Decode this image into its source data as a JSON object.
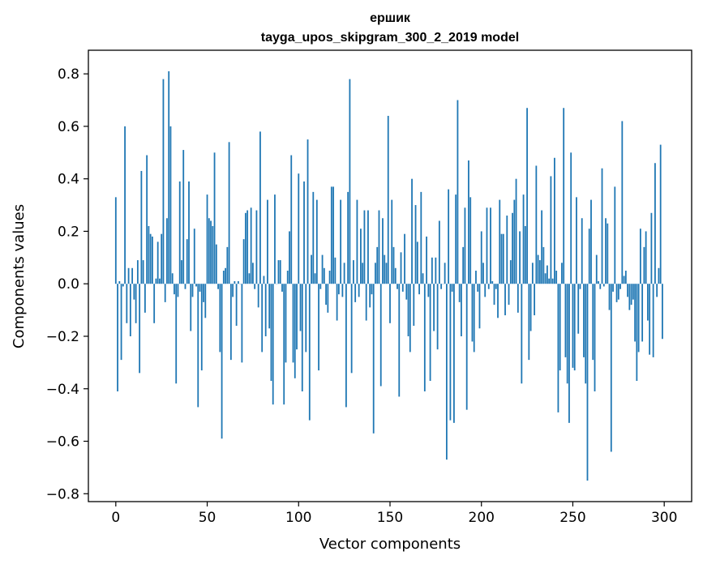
{
  "chart_data": {
    "type": "bar",
    "title_line1": "ершик",
    "title_line2": "tayga_upos_skipgram_300_2_2019 model",
    "xlabel": "Vector components",
    "ylabel": "Components values",
    "xlim": [
      -15,
      315
    ],
    "ylim": [
      -0.83,
      0.89
    ],
    "x_ticks": [
      0,
      50,
      100,
      150,
      200,
      250,
      300
    ],
    "x_tick_labels": [
      "0",
      "50",
      "100",
      "150",
      "200",
      "250",
      "300"
    ],
    "y_ticks": [
      -0.8,
      -0.6,
      -0.4,
      -0.2,
      0.0,
      0.2,
      0.4,
      0.6,
      0.8
    ],
    "y_tick_labels": [
      "−0.8",
      "−0.6",
      "−0.4",
      "−0.2",
      "0.0",
      "0.2",
      "0.4",
      "0.6",
      "0.8"
    ],
    "bar_color": "#1f77b4",
    "values": [
      0.33,
      -0.41,
      0.01,
      -0.29,
      -0.01,
      0.6,
      -0.15,
      0.06,
      -0.2,
      0.06,
      -0.06,
      -0.15,
      0.09,
      -0.34,
      0.43,
      0.09,
      -0.11,
      0.49,
      0.22,
      0.19,
      0.18,
      -0.15,
      0.02,
      0.16,
      0.02,
      0.19,
      0.78,
      -0.07,
      0.25,
      0.81,
      0.6,
      0.04,
      -0.04,
      -0.38,
      -0.05,
      0.39,
      0.09,
      0.51,
      -0.02,
      0.17,
      0.39,
      -0.18,
      -0.05,
      0.21,
      -0.01,
      -0.47,
      -0.03,
      -0.33,
      -0.07,
      -0.13,
      0.34,
      0.25,
      0.24,
      0.22,
      0.5,
      0.15,
      -0.02,
      -0.26,
      -0.59,
      0.05,
      0.06,
      0.14,
      0.54,
      -0.29,
      -0.05,
      0.01,
      -0.16,
      0.01,
      0.0,
      -0.3,
      0.17,
      0.27,
      0.28,
      0.04,
      0.29,
      0.08,
      -0.02,
      0.28,
      -0.09,
      0.58,
      -0.26,
      0.03,
      -0.2,
      0.32,
      -0.17,
      -0.37,
      -0.46,
      0.34,
      0.0,
      0.09,
      0.09,
      -0.03,
      -0.46,
      -0.3,
      0.05,
      0.2,
      0.49,
      -0.3,
      -0.36,
      -0.25,
      0.42,
      -0.18,
      -0.41,
      0.39,
      -0.26,
      0.55,
      -0.52,
      0.11,
      0.35,
      0.04,
      0.32,
      -0.33,
      -0.02,
      0.11,
      0.06,
      -0.08,
      -0.11,
      0.05,
      0.37,
      0.37,
      0.1,
      -0.14,
      -0.04,
      0.32,
      -0.05,
      0.08,
      -0.47,
      0.35,
      0.78,
      -0.34,
      0.09,
      -0.07,
      0.32,
      -0.05,
      0.21,
      0.08,
      0.28,
      -0.14,
      0.28,
      -0.09,
      -0.04,
      -0.57,
      0.08,
      0.14,
      0.28,
      -0.39,
      0.25,
      0.11,
      0.08,
      0.64,
      -0.15,
      0.32,
      0.14,
      0.06,
      -0.02,
      -0.43,
      0.12,
      -0.03,
      0.19,
      -0.06,
      -0.2,
      -0.26,
      0.4,
      -0.16,
      0.3,
      0.16,
      -0.04,
      0.35,
      0.04,
      -0.41,
      0.18,
      -0.05,
      -0.37,
      0.1,
      -0.18,
      0.1,
      -0.25,
      0.24,
      -0.02,
      0.0,
      0.08,
      -0.67,
      0.36,
      -0.52,
      -0.03,
      -0.53,
      0.34,
      0.7,
      -0.07,
      -0.2,
      0.14,
      0.29,
      -0.48,
      0.47,
      0.33,
      -0.22,
      -0.26,
      0.05,
      -0.03,
      -0.17,
      0.2,
      0.08,
      -0.05,
      0.29,
      -0.02,
      0.29,
      0.01,
      -0.08,
      -0.02,
      -0.13,
      0.32,
      0.19,
      0.19,
      -0.12,
      0.26,
      -0.08,
      0.09,
      0.27,
      0.32,
      0.4,
      -0.11,
      0.2,
      -0.38,
      0.34,
      0.22,
      0.67,
      -0.29,
      -0.18,
      0.08,
      -0.12,
      0.45,
      0.11,
      0.09,
      0.28,
      0.14,
      0.04,
      0.07,
      0.02,
      0.41,
      0.02,
      0.48,
      0.05,
      -0.49,
      -0.33,
      0.08,
      0.67,
      -0.28,
      -0.38,
      -0.53,
      0.5,
      -0.32,
      -0.33,
      0.33,
      -0.19,
      -0.02,
      0.25,
      -0.28,
      -0.38,
      -0.75,
      0.21,
      0.32,
      -0.29,
      -0.41,
      0.11,
      0.01,
      -0.02,
      0.44,
      -0.01,
      0.25,
      0.23,
      -0.1,
      -0.64,
      -0.03,
      0.37,
      -0.07,
      -0.06,
      -0.02,
      0.62,
      0.03,
      0.05,
      -0.05,
      -0.1,
      -0.08,
      -0.06,
      -0.22,
      -0.37,
      -0.26,
      0.21,
      -0.22,
      0.14,
      0.2,
      -0.14,
      -0.27,
      0.27,
      -0.28,
      0.46,
      -0.05,
      0.06,
      0.53,
      -0.21
    ]
  }
}
